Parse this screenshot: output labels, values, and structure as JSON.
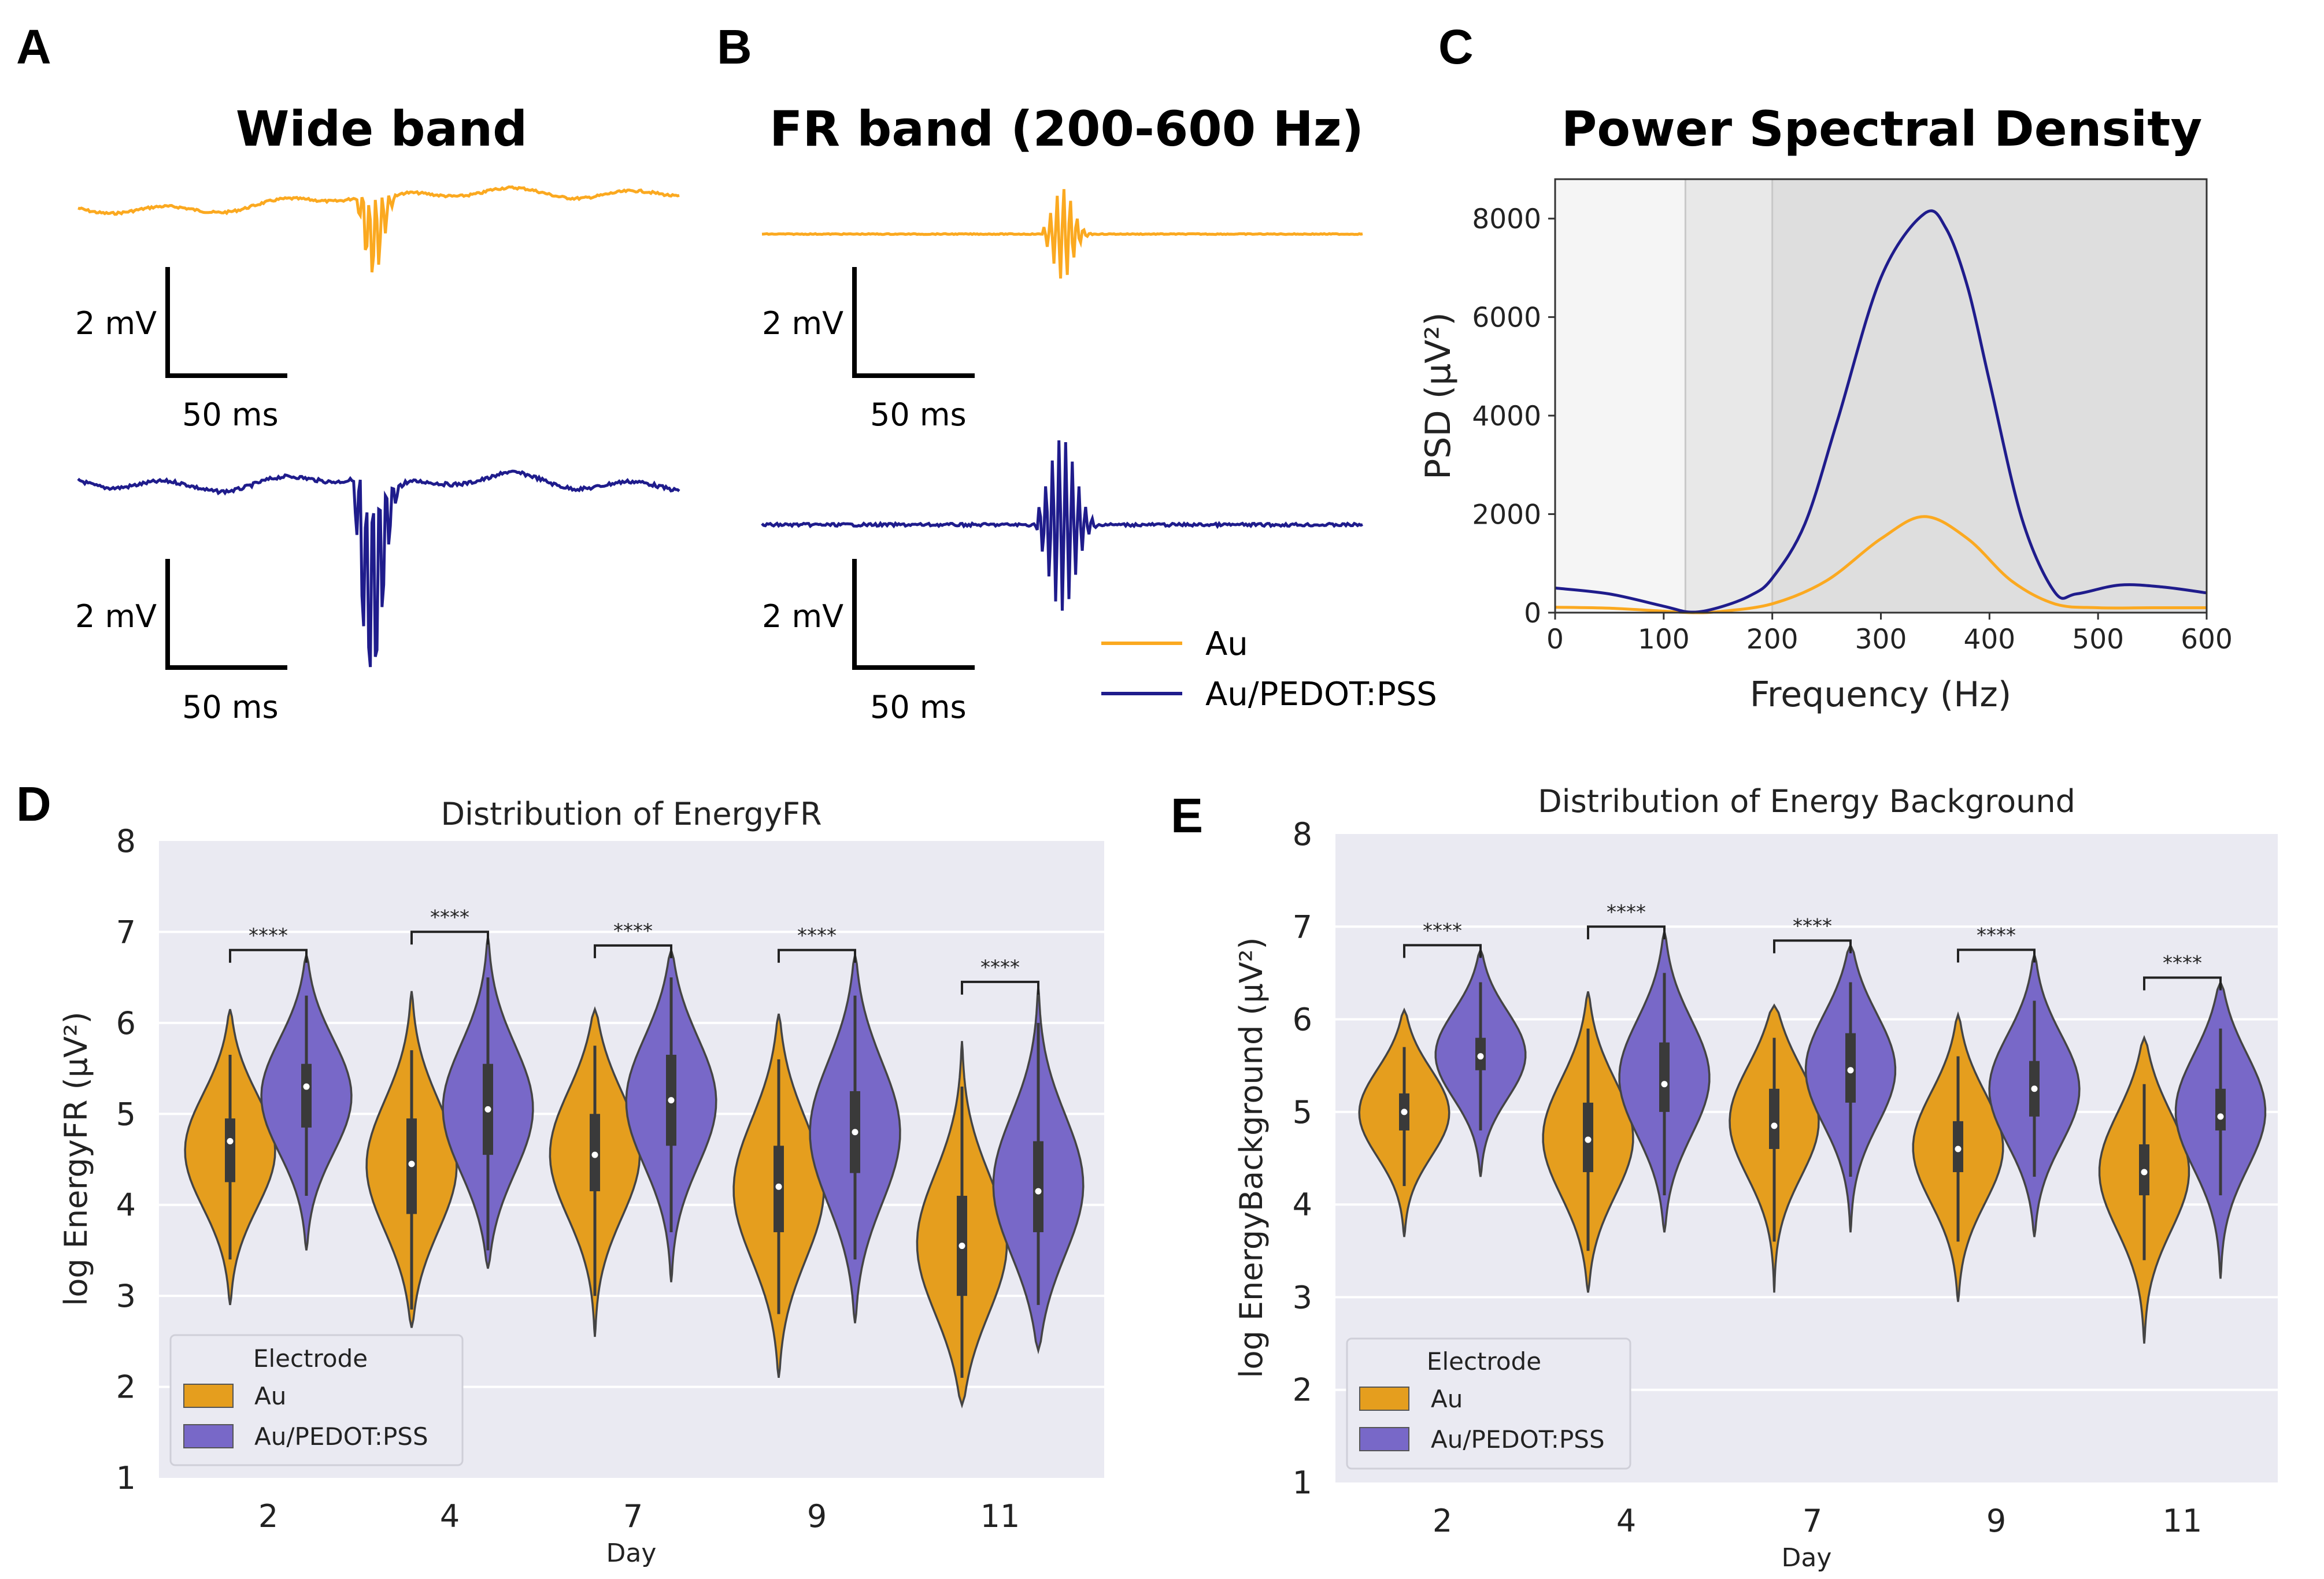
{
  "panels": {
    "A": {
      "label": "A",
      "title": "Wide band",
      "scale_mv": "2 mV",
      "scale_ms": "50 ms"
    },
    "B": {
      "label": "B",
      "title": "FR band (200-600 Hz)",
      "scale_mv": "2 mV",
      "scale_ms": "50 ms"
    },
    "C": {
      "label": "C",
      "title": "Power Spectral Density"
    },
    "D": {
      "label": "D"
    },
    "E": {
      "label": "E"
    }
  },
  "legend_traces": {
    "au": "Au",
    "pedot": "Au/PEDOT:PSS"
  },
  "colors": {
    "au_trace": "#FBA920",
    "pedot_trace": "#1F1C8C",
    "au_violin": "#E59E1E",
    "pedot_violin": "#7868C8",
    "violin_bg": "#EAEAF2",
    "psd_shade_light": "#F5F5F5",
    "psd_shade_mid": "#E8E8E8",
    "psd_shade_dark": "#DEDEDE"
  },
  "chart_data": [
    {
      "panel": "C",
      "type": "line",
      "title": "Power Spectral Density",
      "xlabel": "Frequency (Hz)",
      "ylabel": "PSD (µV²)",
      "xlim": [
        0,
        600
      ],
      "ylim": [
        0,
        8800
      ],
      "xticks": [
        "0",
        "100",
        "200",
        "300",
        "400",
        "500",
        "600"
      ],
      "yticks": [
        "0",
        "2000",
        "4000",
        "6000",
        "8000"
      ],
      "shaded_bands": [
        [
          0,
          120
        ],
        [
          120,
          200
        ],
        [
          200,
          600
        ]
      ],
      "series": [
        {
          "name": "Au",
          "x": [
            0,
            50,
            100,
            125,
            150,
            200,
            250,
            300,
            340,
            380,
            420,
            460,
            500,
            550,
            600
          ],
          "y": [
            110,
            90,
            30,
            0,
            20,
            180,
            650,
            1500,
            1950,
            1500,
            650,
            180,
            100,
            100,
            100
          ]
        },
        {
          "name": "Au/PEDOT:PSS",
          "x": [
            0,
            50,
            100,
            125,
            150,
            180,
            200,
            230,
            260,
            300,
            340,
            360,
            380,
            400,
            430,
            460,
            480,
            520,
            560,
            600
          ],
          "y": [
            500,
            380,
            130,
            10,
            100,
            350,
            700,
            1800,
            3900,
            6800,
            8100,
            7800,
            6600,
            4700,
            1900,
            420,
            380,
            560,
            520,
            400
          ]
        }
      ]
    },
    {
      "panel": "D",
      "type": "violin",
      "title": "Distribution of EnergyFR",
      "xlabel": "Day",
      "ylabel": "log EnergyFR (µV²)",
      "ylim": [
        1,
        8
      ],
      "yticks": [
        "1",
        "2",
        "3",
        "4",
        "5",
        "6",
        "7",
        "8"
      ],
      "categories": [
        "2",
        "4",
        "7",
        "9",
        "11"
      ],
      "significance": [
        "****",
        "****",
        "****",
        "****",
        "****"
      ],
      "legend_title": "Electrode",
      "series": [
        {
          "name": "Au",
          "violins": [
            {
              "min": 2.9,
              "max": 6.15,
              "q1": 4.25,
              "median": 4.7,
              "q3": 4.95,
              "wlo": 3.4,
              "whi": 5.65
            },
            {
              "min": 2.65,
              "max": 6.35,
              "q1": 3.9,
              "median": 4.45,
              "q3": 4.95,
              "wlo": 2.85,
              "whi": 5.7
            },
            {
              "min": 2.55,
              "max": 6.15,
              "q1": 4.15,
              "median": 4.55,
              "q3": 5.0,
              "wlo": 3.0,
              "whi": 5.75
            },
            {
              "min": 2.1,
              "max": 6.1,
              "q1": 3.7,
              "median": 4.2,
              "q3": 4.65,
              "wlo": 2.8,
              "whi": 5.6
            },
            {
              "min": 1.8,
              "max": 5.8,
              "q1": 3.0,
              "median": 3.55,
              "q3": 4.1,
              "wlo": 2.1,
              "whi": 5.3
            }
          ]
        },
        {
          "name": "Au/PEDOT:PSS",
          "violins": [
            {
              "min": 3.5,
              "max": 6.75,
              "q1": 4.85,
              "median": 5.3,
              "q3": 5.55,
              "wlo": 4.1,
              "whi": 6.3
            },
            {
              "min": 3.3,
              "max": 6.95,
              "q1": 4.55,
              "median": 5.05,
              "q3": 5.55,
              "wlo": 3.5,
              "whi": 6.5
            },
            {
              "min": 3.15,
              "max": 6.8,
              "q1": 4.65,
              "median": 5.15,
              "q3": 5.65,
              "wlo": 3.7,
              "whi": 6.5
            },
            {
              "min": 2.7,
              "max": 6.75,
              "q1": 4.35,
              "median": 4.8,
              "q3": 5.25,
              "wlo": 3.4,
              "whi": 6.3
            },
            {
              "min": 2.4,
              "max": 6.4,
              "q1": 3.7,
              "median": 4.15,
              "q3": 4.7,
              "wlo": 2.9,
              "whi": 6.0
            }
          ]
        }
      ]
    },
    {
      "panel": "E",
      "type": "violin",
      "title": "Distribution of Energy Background",
      "xlabel": "Day",
      "ylabel": "log EnergyBackground (µV²)",
      "ylim": [
        1,
        8
      ],
      "yticks": [
        "1",
        "2",
        "3",
        "4",
        "5",
        "6",
        "7",
        "8"
      ],
      "categories": [
        "2",
        "4",
        "7",
        "9",
        "11"
      ],
      "significance": [
        "****",
        "****",
        "****",
        "****",
        "****"
      ],
      "legend_title": "Electrode",
      "series": [
        {
          "name": "Au",
          "violins": [
            {
              "min": 3.65,
              "max": 6.1,
              "q1": 4.8,
              "median": 5.0,
              "q3": 5.2,
              "wlo": 4.2,
              "whi": 5.7
            },
            {
              "min": 3.05,
              "max": 6.3,
              "q1": 4.35,
              "median": 4.7,
              "q3": 5.1,
              "wlo": 3.5,
              "whi": 5.9
            },
            {
              "min": 3.05,
              "max": 6.15,
              "q1": 4.6,
              "median": 4.85,
              "q3": 5.25,
              "wlo": 3.6,
              "whi": 5.8
            },
            {
              "min": 2.95,
              "max": 6.05,
              "q1": 4.35,
              "median": 4.6,
              "q3": 4.9,
              "wlo": 3.6,
              "whi": 5.6
            },
            {
              "min": 2.5,
              "max": 5.8,
              "q1": 4.1,
              "median": 4.35,
              "q3": 4.65,
              "wlo": 3.4,
              "whi": 5.3
            }
          ]
        },
        {
          "name": "Au/PEDOT:PSS",
          "violins": [
            {
              "min": 4.3,
              "max": 6.75,
              "q1": 5.45,
              "median": 5.6,
              "q3": 5.8,
              "wlo": 4.8,
              "whi": 6.4
            },
            {
              "min": 3.7,
              "max": 6.95,
              "q1": 5.0,
              "median": 5.3,
              "q3": 5.75,
              "wlo": 4.1,
              "whi": 6.5
            },
            {
              "min": 3.7,
              "max": 6.8,
              "q1": 5.1,
              "median": 5.45,
              "q3": 5.85,
              "wlo": 4.3,
              "whi": 6.4
            },
            {
              "min": 3.65,
              "max": 6.7,
              "q1": 4.95,
              "median": 5.25,
              "q3": 5.55,
              "wlo": 4.3,
              "whi": 6.2
            },
            {
              "min": 3.2,
              "max": 6.4,
              "q1": 4.8,
              "median": 4.95,
              "q3": 5.25,
              "wlo": 4.1,
              "whi": 5.9
            }
          ]
        }
      ]
    }
  ]
}
